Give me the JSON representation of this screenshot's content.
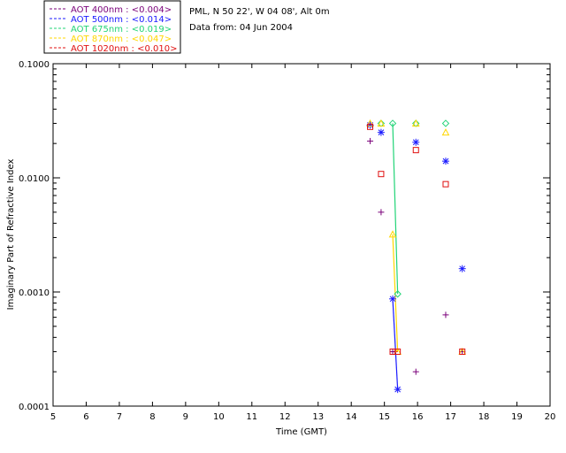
{
  "info": {
    "site": "PML, N 50 22', W 04 08', Alt 0m",
    "date": "Data from: 04 Jun 2004"
  },
  "chart_data": {
    "type": "line",
    "xlabel": "Time (GMT)",
    "ylabel": "Imaginary Part of Refractive Index",
    "xlim": [
      5,
      20
    ],
    "ylim": [
      0.0001,
      0.1
    ],
    "yscale": "log",
    "x_ticks": [
      "5",
      "6",
      "7",
      "8",
      "9",
      "10",
      "11",
      "12",
      "13",
      "14",
      "15",
      "16",
      "17",
      "18",
      "19",
      "20"
    ],
    "y_ticks": [
      "0.1000",
      "0.0100",
      "0.0010",
      "0.0001"
    ],
    "grid": false,
    "legend_position": "top-left",
    "series": [
      {
        "name": "AOT  400nm : <0.004>",
        "color": "#7a007a",
        "marker": "plus",
        "x": [
          14.57,
          14.9,
          15.25,
          15.95,
          16.85,
          17.35
        ],
        "y": [
          0.021,
          0.005,
          0.0003,
          0.0002,
          0.00063,
          0.0003
        ],
        "line_segment": []
      },
      {
        "name": "AOT  500nm : <0.014>",
        "color": "#1a1aff",
        "marker": "asterisk",
        "x": [
          14.57,
          14.9,
          15.25,
          15.4,
          15.95,
          16.85,
          17.35
        ],
        "y": [
          0.029,
          0.025,
          0.00087,
          0.00014,
          0.0205,
          0.014,
          0.0016
        ],
        "line_segment": [
          2,
          3
        ]
      },
      {
        "name": "AOT  675nm : <0.019>",
        "color": "#22d477",
        "marker": "diamond",
        "x": [
          14.9,
          15.25,
          15.4,
          15.95,
          16.85
        ],
        "y": [
          0.03,
          0.03,
          0.00096,
          0.03,
          0.03
        ],
        "line_segment": [
          1,
          2
        ]
      },
      {
        "name": "AOT  870nm : <0.047>",
        "color": "#ffd700",
        "marker": "triangle",
        "x": [
          14.57,
          14.9,
          15.25,
          15.4,
          15.95,
          16.85,
          17.35
        ],
        "y": [
          0.03,
          0.03,
          0.0032,
          0.0003,
          0.03,
          0.025,
          0.0003
        ],
        "line_segment": [
          2,
          3
        ]
      },
      {
        "name": "AOT 1020nm : <0.010>",
        "color": "#e01010",
        "marker": "square",
        "x": [
          14.57,
          14.9,
          15.25,
          15.4,
          15.95,
          16.85,
          17.35
        ],
        "y": [
          0.028,
          0.0108,
          0.0003,
          0.0003,
          0.0175,
          0.0088,
          0.0003
        ],
        "line_segment": [
          2,
          3
        ]
      }
    ]
  }
}
